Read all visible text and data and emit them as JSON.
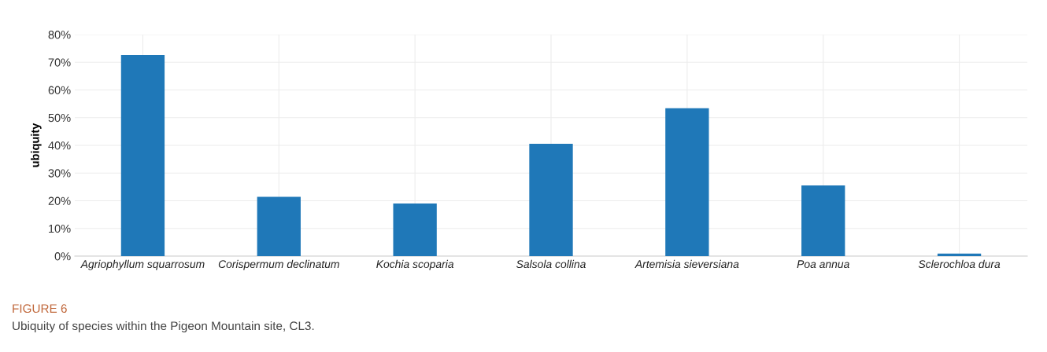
{
  "chart_data": {
    "type": "bar",
    "title": "FIGURE 6",
    "subtitle": "Ubiquity of species within the Pigeon Mountain site, CL3.",
    "ylabel": "ubiquity",
    "categories": [
      "Agriophyllum squarrosum",
      "Corispermum declinatum",
      "Kochia scoparia",
      "Salsola collina",
      "Artemisia sieversiana",
      "Poa annua",
      "Sclerochloa dura"
    ],
    "values": [
      72.6,
      21.4,
      19.0,
      40.6,
      53.4,
      25.5,
      0.9
    ],
    "color": "#1f78b8",
    "ylim": [
      0,
      80
    ],
    "yticks": [
      {
        "value": 0,
        "label": "0%"
      },
      {
        "value": 10,
        "label": "10%"
      },
      {
        "value": 20,
        "label": "20%"
      },
      {
        "value": 30,
        "label": "30%"
      },
      {
        "value": 40,
        "label": "40%"
      },
      {
        "value": 50,
        "label": "50%"
      },
      {
        "value": 60,
        "label": "60%"
      },
      {
        "value": 70,
        "label": "70%"
      },
      {
        "value": 80,
        "label": "80%"
      }
    ],
    "grid": true
  }
}
